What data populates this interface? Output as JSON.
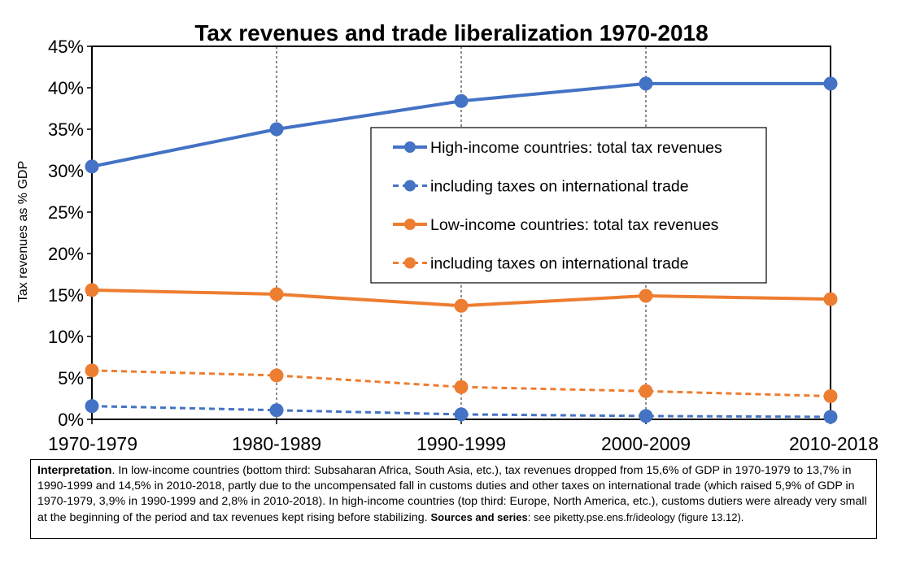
{
  "chart_data": {
    "type": "line",
    "title": "Tax revenues and trade liberalization 1970-2018",
    "ylabel": "Tax revenues as % GDP",
    "xlabel": "",
    "categories": [
      "1970-1979",
      "1980-1989",
      "1990-1999",
      "2000-2009",
      "2010-2018"
    ],
    "ylim": [
      0,
      45
    ],
    "yticks": [
      "0%",
      "5%",
      "10%",
      "15%",
      "20%",
      "25%",
      "30%",
      "35%",
      "40%",
      "45%"
    ],
    "grid": "vertical dashed",
    "legend_position": "right",
    "series": [
      {
        "name": "High-income countries: total tax revenues",
        "values": [
          30.5,
          35.0,
          38.4,
          40.5,
          40.5
        ],
        "color": "#4472C4",
        "style": "solid"
      },
      {
        "name": "including taxes on international trade",
        "values": [
          1.6,
          1.1,
          0.6,
          0.4,
          0.3
        ],
        "color": "#4472C4",
        "style": "dashed"
      },
      {
        "name": "Low-income countries: total tax revenues",
        "values": [
          15.6,
          15.1,
          13.7,
          14.9,
          14.5
        ],
        "color": "#ED7D31",
        "style": "solid"
      },
      {
        "name": "including taxes on international trade",
        "values": [
          5.9,
          5.3,
          3.9,
          3.4,
          2.8
        ],
        "color": "#ED7D31",
        "style": "dashed"
      }
    ]
  },
  "note": {
    "label": "Interpretation",
    "text": ". In low-income countries (bottom third: Subsaharan Africa, South Asia, etc.), tax revenues dropped from 15,6% of GDP in 1970-1979 to 13,7% in 1990-1999 and 14,5% in 2010-2018, partly due to the uncompensated fall in customs duties and other taxes on international trade (which raised 5,9% of GDP in 1970-1979, 3,9% in 1990-1999 and 2,8% in 2010-2018). In high-income countries (top third: Europe, North America, etc.), customs dutiers were already very small at the beginning of the period and tax revenues kept rising before stabilizing.",
    "sources_label": "Sources and series",
    "sources_text": ": see piketty.pse.ens.fr/ideology (figure 13.12)."
  }
}
